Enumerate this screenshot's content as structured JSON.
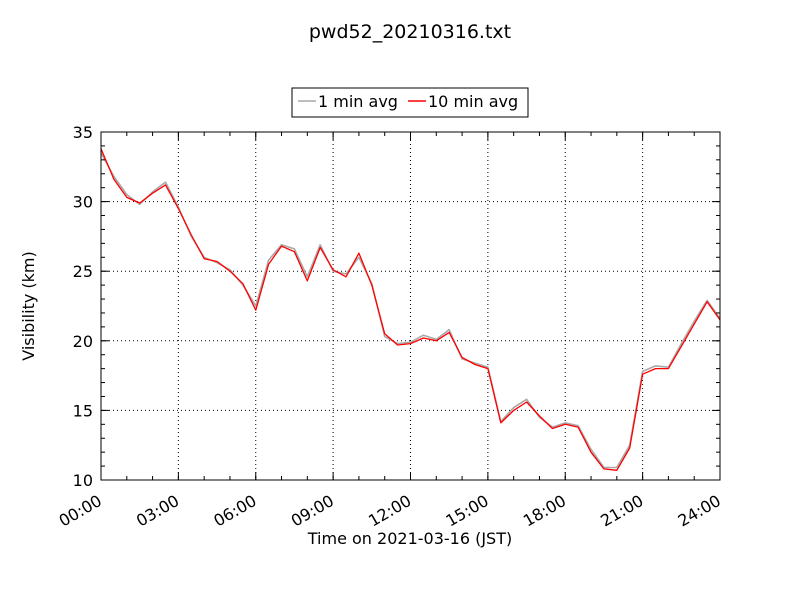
{
  "chart_data": {
    "type": "line",
    "title": "pwd52_20210316.txt",
    "xlabel": "Time on 2021-03-16 (JST)",
    "ylabel": "Visibility (km)",
    "xlim": [
      "00:00",
      "24:00"
    ],
    "ylim": [
      10,
      35
    ],
    "xticks": [
      "00:00",
      "03:00",
      "06:00",
      "09:00",
      "12:00",
      "15:00",
      "18:00",
      "21:00",
      "24:00"
    ],
    "yticks": [
      "10",
      "15",
      "20",
      "25",
      "30",
      "35"
    ],
    "grid": true,
    "legend_position": "top-center",
    "series": [
      {
        "name": "1 min avg",
        "color": "#a9a9a9",
        "x": [
          "00:00",
          "00:30",
          "01:00",
          "01:30",
          "02:00",
          "02:30",
          "03:00",
          "03:30",
          "04:00",
          "04:30",
          "05:00",
          "05:30",
          "06:00",
          "06:30",
          "07:00",
          "07:30",
          "08:00",
          "08:30",
          "09:00",
          "09:30",
          "10:00",
          "10:30",
          "11:00",
          "11:30",
          "12:00",
          "12:30",
          "13:00",
          "13:30",
          "14:00",
          "14:30",
          "15:00",
          "15:30",
          "16:00",
          "16:30",
          "17:00",
          "17:30",
          "18:00",
          "18:30",
          "19:00",
          "19:30",
          "20:00",
          "20:30",
          "21:00",
          "21:30",
          "22:00",
          "22:30",
          "23:00",
          "23:30",
          "24:00"
        ],
        "y": [
          33.5,
          31.8,
          30.5,
          29.8,
          30.7,
          31.4,
          29.6,
          27.5,
          26.0,
          25.6,
          25.1,
          24.0,
          22.5,
          25.8,
          26.9,
          26.6,
          24.6,
          26.9,
          25.0,
          24.8,
          26.0,
          24.1,
          20.3,
          19.8,
          19.9,
          20.4,
          20.1,
          20.8,
          18.7,
          18.4,
          18.1,
          14.2,
          15.2,
          15.8,
          14.5,
          13.8,
          14.1,
          13.9,
          12.2,
          10.9,
          10.9,
          12.5,
          17.8,
          18.2,
          18.1,
          19.8,
          21.4,
          22.9,
          21.6
        ]
      },
      {
        "name": "10 min avg",
        "color": "#ff0000",
        "x": [
          "00:00",
          "00:30",
          "01:00",
          "01:30",
          "02:00",
          "02:30",
          "03:00",
          "03:30",
          "04:00",
          "04:30",
          "05:00",
          "05:30",
          "06:00",
          "06:30",
          "07:00",
          "07:30",
          "08:00",
          "08:30",
          "09:00",
          "09:30",
          "10:00",
          "10:30",
          "11:00",
          "11:30",
          "12:00",
          "12:30",
          "13:00",
          "13:30",
          "14:00",
          "14:30",
          "15:00",
          "15:30",
          "16:00",
          "16:30",
          "17:00",
          "17:30",
          "18:00",
          "18:30",
          "19:00",
          "19:30",
          "20:00",
          "20:30",
          "21:00",
          "21:30",
          "22:00",
          "22:30",
          "23:00",
          "23:30",
          "24:00"
        ],
        "y": [
          33.8,
          31.6,
          30.3,
          29.9,
          30.6,
          31.2,
          29.5,
          27.6,
          25.9,
          25.7,
          25.0,
          24.1,
          22.2,
          25.5,
          26.8,
          26.4,
          24.3,
          26.7,
          25.1,
          24.6,
          26.3,
          24.0,
          20.5,
          19.7,
          19.8,
          20.2,
          20.0,
          20.6,
          18.8,
          18.3,
          18.0,
          14.1,
          15.0,
          15.6,
          14.6,
          13.7,
          14.0,
          13.8,
          12.0,
          10.8,
          10.7,
          12.3,
          17.6,
          18.0,
          18.0,
          19.6,
          21.2,
          22.8,
          21.5
        ]
      }
    ]
  }
}
